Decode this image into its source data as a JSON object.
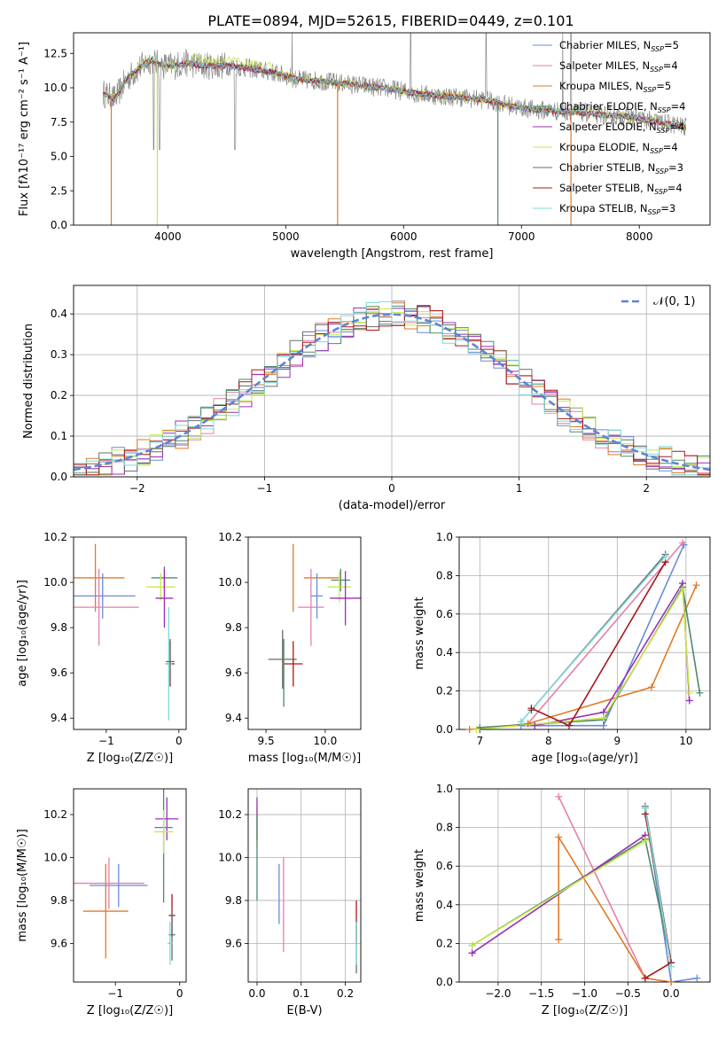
{
  "figure_title": "PLATE=0894, MJD=52615, FIBERID=0449, z=0.101",
  "colors": {
    "chabrier_miles": "#6a8ad8",
    "salpeter_miles": "#e67fa8",
    "kroupa_miles": "#e07a28",
    "chabrier_elodie": "#4d8a6a",
    "salpeter_elodie": "#9a2fb8",
    "kroupa_elodie": "#c8e84a",
    "chabrier_stelib": "#6b6b6b",
    "salpeter_stelib": "#a81818",
    "kroupa_stelib": "#7fd8d8",
    "normal_curve": "#5b85d6",
    "grid": "#b0b0b0"
  },
  "chart_data": [
    {
      "id": "spectrum",
      "type": "line",
      "xlabel": "wavelength [Angstrom, rest frame]",
      "ylabel": "Flux [f$_\\lambda$10$^{-17}$ erg cm$^{-2}$ s$^{-1}$ A$^{-1}$]",
      "ylabel_display": "Flux [fλ10⁻¹⁷ erg cm⁻² s⁻¹ A⁻¹]",
      "xlim": [
        3200,
        8600
      ],
      "ylim": [
        0,
        14
      ],
      "xticks": [
        4000,
        5000,
        6000,
        7000,
        8000
      ],
      "yticks": [
        0.0,
        2.5,
        5.0,
        7.5,
        10.0,
        12.5
      ],
      "grid": false,
      "legend_position": "top-right",
      "legend": [
        {
          "key": "chabrier_miles",
          "label": "Chabrier MILES, N",
          "sub": "SSP",
          "tail": "=5"
        },
        {
          "key": "salpeter_miles",
          "label": "Salpeter MILES, N",
          "sub": "SSP",
          "tail": "=4"
        },
        {
          "key": "kroupa_miles",
          "label": "Kroupa MILES, N",
          "sub": "SSP",
          "tail": "=5"
        },
        {
          "key": "chabrier_elodie",
          "label": "Chabrier ELODIE, N",
          "sub": "SSP",
          "tail": "=4"
        },
        {
          "key": "salpeter_elodie",
          "label": "Salpeter ELODIE, N",
          "sub": "SSP",
          "tail": "=4"
        },
        {
          "key": "kroupa_elodie",
          "label": "Kroupa ELODIE, N",
          "sub": "SSP",
          "tail": "=4"
        },
        {
          "key": "chabrier_stelib",
          "label": "Chabrier STELIB, N",
          "sub": "SSP",
          "tail": "=3"
        },
        {
          "key": "salpeter_stelib",
          "label": "Salpeter STELIB, N",
          "sub": "SSP",
          "tail": "=4"
        },
        {
          "key": "kroupa_stelib",
          "label": "Kroupa STELIB, N",
          "sub": "SSP",
          "tail": "=3"
        }
      ],
      "continuum": [
        [
          3450,
          9.6
        ],
        [
          3550,
          9.2
        ],
        [
          3650,
          10.6
        ],
        [
          3750,
          11.4
        ],
        [
          3850,
          12.0
        ],
        [
          3950,
          11.6
        ],
        [
          4050,
          11.6
        ],
        [
          4150,
          11.8
        ],
        [
          4300,
          11.6
        ],
        [
          4500,
          11.6
        ],
        [
          4700,
          11.4
        ],
        [
          4900,
          11.1
        ],
        [
          5100,
          10.6
        ],
        [
          5300,
          10.5
        ],
        [
          5500,
          10.3
        ],
        [
          5700,
          10.1
        ],
        [
          5900,
          9.9
        ],
        [
          6100,
          9.6
        ],
        [
          6300,
          9.4
        ],
        [
          6500,
          9.3
        ],
        [
          6700,
          9.1
        ],
        [
          6900,
          8.7
        ],
        [
          7100,
          8.4
        ],
        [
          7300,
          8.3
        ],
        [
          7500,
          8.2
        ],
        [
          7700,
          8.0
        ],
        [
          7900,
          7.9
        ],
        [
          8100,
          7.6
        ],
        [
          8300,
          7.3
        ],
        [
          8400,
          7.1
        ]
      ],
      "data_drops": [
        3880,
        3930,
        4570
      ],
      "sky_spikes": [
        5055,
        6060,
        6700,
        7350,
        7420
      ],
      "model_drops": [
        {
          "x": 3520,
          "color": "kroupa_miles"
        },
        {
          "x": 3910,
          "color": "kroupa_elodie"
        },
        {
          "x": 5440,
          "color": "kroupa_miles"
        },
        {
          "x": 6800,
          "color": "chabrier_elodie"
        },
        {
          "x": 7420,
          "color": "kroupa_miles"
        }
      ]
    },
    {
      "id": "residual_hist",
      "type": "line",
      "xlabel": "(data-model)/error",
      "ylabel": "Normed distribution",
      "xlim": [
        -2.5,
        2.5
      ],
      "ylim": [
        0,
        0.47
      ],
      "xticks": [
        -2,
        -1,
        0,
        1,
        2
      ],
      "yticks": [
        0.0,
        0.1,
        0.2,
        0.3,
        0.4
      ],
      "grid": true,
      "legend_position": "top-right",
      "legend_label": "𝒩(0, 1)",
      "bin_width": 0.1,
      "bin_start": -2.5,
      "jitter_seed": 7
    },
    {
      "id": "age_vs_Z",
      "type": "scatter",
      "xlabel": "Z [log₁₀(Z/Z☉)]",
      "ylabel": "age  [log₁₀(age/yr)]",
      "xlim": [
        -1.45,
        0.1
      ],
      "ylim": [
        9.35,
        10.2
      ],
      "xticks": [
        -1,
        0
      ],
      "yticks": [
        9.4,
        9.6,
        9.8,
        10.0,
        10.2
      ],
      "grid": false,
      "points": [
        {
          "color": "kroupa_miles",
          "x": -1.15,
          "xerr": 0.4,
          "y": 10.02,
          "yerr": 0.15
        },
        {
          "color": "chabrier_miles",
          "x": -1.05,
          "xerr": 0.45,
          "y": 9.94,
          "yerr": 0.1
        },
        {
          "color": "salpeter_miles",
          "x": -1.1,
          "xerr": 0.55,
          "y": 9.89,
          "yerr": 0.17
        },
        {
          "color": "chabrier_elodie",
          "x": -0.2,
          "xerr": 0.18,
          "y": 10.02,
          "yerr": 0.05
        },
        {
          "color": "kroupa_elodie",
          "x": -0.25,
          "xerr": 0.2,
          "y": 9.98,
          "yerr": 0.06
        },
        {
          "color": "salpeter_elodie",
          "x": -0.2,
          "xerr": 0.12,
          "y": 9.93,
          "yerr": 0.13
        },
        {
          "color": "salpeter_stelib",
          "x": -0.12,
          "xerr": 0.06,
          "y": 9.64,
          "yerr": 0.1
        },
        {
          "color": "kroupa_stelib",
          "x": -0.14,
          "xerr": 0.05,
          "y": 9.64,
          "yerr": 0.25
        },
        {
          "color": "chabrier_stelib",
          "x": -0.12,
          "xerr": 0.06,
          "y": 9.65,
          "yerr": 0.1
        }
      ]
    },
    {
      "id": "age_vs_mass",
      "type": "scatter",
      "xlabel": "mass [log₁₀(M/M☉)]",
      "ylabel": "",
      "xlim": [
        9.35,
        10.3
      ],
      "ylim": [
        9.35,
        10.2
      ],
      "xticks": [
        9.5,
        10.0
      ],
      "yticks": [
        9.4,
        9.6,
        9.8,
        10.0,
        10.2
      ],
      "grid": false,
      "points": [
        {
          "color": "kroupa_miles",
          "x": 9.73,
          "xerr": 0.0,
          "y": 10.02,
          "yerr": 0.15
        },
        {
          "color": "kroupa_miles",
          "x": 9.97,
          "xerr": 0.15,
          "y": 10.02,
          "yerr": 0.0
        },
        {
          "color": "chabrier_miles",
          "x": 9.93,
          "xerr": 0.05,
          "y": 9.94,
          "yerr": 0.1
        },
        {
          "color": "salpeter_miles",
          "x": 9.88,
          "xerr": 0.11,
          "y": 9.89,
          "yerr": 0.17
        },
        {
          "color": "chabrier_elodie",
          "x": 10.13,
          "xerr": 0.08,
          "y": 10.01,
          "yerr": 0.05
        },
        {
          "color": "kroupa_elodie",
          "x": 10.12,
          "xerr": 0.1,
          "y": 9.98,
          "yerr": 0.07
        },
        {
          "color": "salpeter_elodie",
          "x": 10.17,
          "xerr": 0.13,
          "y": 9.93,
          "yerr": 0.12
        },
        {
          "color": "chabrier_stelib",
          "x": 9.64,
          "xerr": 0.12,
          "y": 9.66,
          "yerr": 0.13
        },
        {
          "color": "salpeter_stelib",
          "x": 9.73,
          "xerr": 0.08,
          "y": 9.64,
          "yerr": 0.1
        },
        {
          "color": "chabrier_elodie",
          "x": 9.65,
          "xerr": 0.0,
          "y": 9.6,
          "yerr": 0.15
        }
      ]
    },
    {
      "id": "weight_vs_age",
      "type": "line",
      "xlabel": "age  [log₁₀(age/yr)]",
      "ylabel": "mass weight",
      "xlim": [
        6.7,
        10.35
      ],
      "ylim": [
        0,
        1.0
      ],
      "xticks": [
        7,
        8,
        9,
        10
      ],
      "yticks": [
        0.0,
        0.2,
        0.4,
        0.6,
        0.8,
        1.0
      ],
      "grid": true,
      "series": [
        {
          "color": "chabrier_miles",
          "x": [
            7.6,
            8.8,
            9.97
          ],
          "y": [
            0.02,
            0.02,
            0.96
          ]
        },
        {
          "color": "salpeter_miles",
          "x": [
            7.7,
            9.95
          ],
          "y": [
            0.03,
            0.97
          ]
        },
        {
          "color": "kroupa_miles",
          "x": [
            6.85,
            7.7,
            9.5,
            10.15
          ],
          "y": [
            0.0,
            0.03,
            0.22,
            0.75
          ]
        },
        {
          "color": "chabrier_elodie",
          "x": [
            7.0,
            8.8,
            9.95,
            10.2
          ],
          "y": [
            0.01,
            0.05,
            0.74,
            0.19
          ]
        },
        {
          "color": "salpeter_elodie",
          "x": [
            7.8,
            8.8,
            9.95,
            10.05
          ],
          "y": [
            0.02,
            0.09,
            0.76,
            0.15
          ]
        },
        {
          "color": "kroupa_elodie",
          "x": [
            6.95,
            8.8,
            9.95,
            10.05
          ],
          "y": [
            0.0,
            0.06,
            0.73,
            0.19
          ]
        },
        {
          "color": "chabrier_stelib",
          "x": [
            7.75,
            9.7
          ],
          "y": [
            0.1,
            0.91
          ]
        },
        {
          "color": "salpeter_stelib",
          "x": [
            7.75,
            8.3,
            9.7
          ],
          "y": [
            0.11,
            0.02,
            0.87
          ]
        },
        {
          "color": "kroupa_stelib",
          "x": [
            7.6,
            9.7
          ],
          "y": [
            0.04,
            0.9
          ]
        }
      ]
    },
    {
      "id": "mass_vs_Z",
      "type": "scatter",
      "xlabel": "Z [log₁₀(Z/Z☉)]",
      "ylabel": "mass [log₁₀(M/M☉)]",
      "xlim": [
        -1.65,
        0.1
      ],
      "ylim": [
        9.42,
        10.32
      ],
      "xticks": [
        -1,
        0
      ],
      "yticks": [
        9.6,
        9.8,
        10.0,
        10.2
      ],
      "grid": false,
      "points": [
        {
          "color": "kroupa_miles",
          "x": -1.15,
          "xerr": 0.35,
          "y": 9.75,
          "yerr": 0.22
        },
        {
          "color": "chabrier_miles",
          "x": -0.95,
          "xerr": 0.45,
          "y": 9.87,
          "yerr": 0.1
        },
        {
          "color": "salpeter_miles",
          "x": -1.1,
          "xerr": 0.55,
          "y": 9.88,
          "yerr": 0.12
        },
        {
          "color": "salpeter_elodie",
          "x": -0.2,
          "xerr": 0.18,
          "y": 10.18,
          "yerr": 0.1
        },
        {
          "color": "chabrier_elodie",
          "x": -0.25,
          "xerr": 0.14,
          "y": 10.14,
          "yerr": 0.35
        },
        {
          "color": "kroupa_elodie",
          "x": -0.25,
          "xerr": 0.15,
          "y": 10.12,
          "yerr": 0.1
        },
        {
          "color": "salpeter_stelib",
          "x": -0.12,
          "xerr": 0.05,
          "y": 9.73,
          "yerr": 0.1
        },
        {
          "color": "chabrier_stelib",
          "x": -0.12,
          "xerr": 0.05,
          "y": 9.64,
          "yerr": 0.12
        },
        {
          "color": "kroupa_stelib",
          "x": -0.15,
          "xerr": 0.04,
          "y": 9.6,
          "yerr": 0.1
        }
      ]
    },
    {
      "id": "mass_vs_ebv",
      "type": "scatter",
      "xlabel": "E(B-V)",
      "ylabel": "",
      "xlim": [
        -0.02,
        0.235
      ],
      "ylim": [
        9.42,
        10.32
      ],
      "xticks": [
        0.0,
        0.1,
        0.2
      ],
      "yticks": [
        9.6,
        9.8,
        10.0,
        10.2
      ],
      "grid": true,
      "points": [
        {
          "color": "kroupa_elodie",
          "x": 0.0,
          "y": 10.14,
          "yerr": 0.1
        },
        {
          "color": "salpeter_elodie",
          "x": 0.0,
          "y": 10.18,
          "yerr": 0.1
        },
        {
          "color": "chabrier_elodie",
          "x": 0.0,
          "y": 10.0,
          "yerr": 0.2
        },
        {
          "color": "chabrier_miles",
          "x": 0.05,
          "y": 9.83,
          "yerr": 0.14
        },
        {
          "color": "salpeter_miles",
          "x": 0.06,
          "y": 9.78,
          "yerr": 0.22
        },
        {
          "color": "salpeter_stelib",
          "x": 0.225,
          "y": 9.7,
          "yerr": 0.1
        },
        {
          "color": "chabrier_stelib",
          "x": 0.225,
          "y": 9.58,
          "yerr": 0.12
        },
        {
          "color": "kroupa_stelib",
          "x": 0.225,
          "y": 9.6,
          "yerr": 0.1
        }
      ]
    },
    {
      "id": "weight_vs_Z",
      "type": "line",
      "xlabel": "Z [log₁₀(Z/Z☉)]",
      "ylabel": "mass weight",
      "xlim": [
        -2.45,
        0.45
      ],
      "ylim": [
        0,
        1.0
      ],
      "xticks": [
        -2.0,
        -1.5,
        -1.0,
        -0.5,
        0.0
      ],
      "yticks": [
        0.0,
        0.2,
        0.4,
        0.6,
        0.8,
        1.0
      ],
      "grid": true,
      "series": [
        {
          "color": "chabrier_miles",
          "x": [
            -0.3,
            0.0,
            0.3
          ],
          "y": [
            0.9,
            0.0,
            0.02
          ]
        },
        {
          "color": "salpeter_miles",
          "x": [
            -1.3,
            -0.3
          ],
          "y": [
            0.96,
            0.02
          ]
        },
        {
          "color": "kroupa_miles",
          "x": [
            -1.3,
            -1.3,
            -0.3,
            0.0
          ],
          "y": [
            0.22,
            0.75,
            0.02,
            0.0
          ]
        },
        {
          "color": "chabrier_elodie",
          "x": [
            -2.3,
            -0.3,
            0.0
          ],
          "y": [
            0.19,
            0.74,
            0.1
          ]
        },
        {
          "color": "salpeter_elodie",
          "x": [
            -2.3,
            -0.3
          ],
          "y": [
            0.15,
            0.76
          ]
        },
        {
          "color": "kroupa_elodie",
          "x": [
            -2.3,
            -0.3
          ],
          "y": [
            0.19,
            0.73
          ]
        },
        {
          "color": "chabrier_stelib",
          "x": [
            -0.3,
            0.0
          ],
          "y": [
            0.91,
            0.1
          ]
        },
        {
          "color": "salpeter_stelib",
          "x": [
            -0.3,
            0.0,
            -0.3
          ],
          "y": [
            0.87,
            0.1,
            0.02
          ]
        },
        {
          "color": "kroupa_stelib",
          "x": [
            -0.3,
            0.0
          ],
          "y": [
            0.9,
            0.08
          ]
        }
      ]
    }
  ]
}
